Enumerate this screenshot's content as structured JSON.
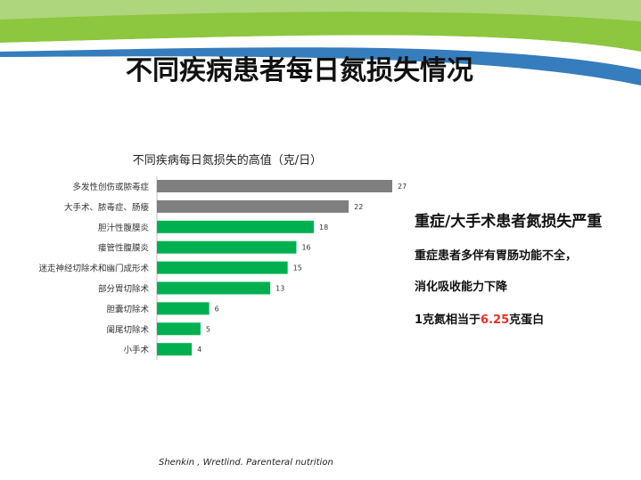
{
  "slide": {
    "title": "不同疾病患者每日氮损失情况",
    "citation": "Shenkin , Wretlind. Parenteral nutrition"
  },
  "side_text": {
    "heading": "重症/大手术患者氮损失严重",
    "line1": "重症患者多伴有胃肠功能不全，",
    "line2": "消化吸收能力下降",
    "line3_prefix": "1克氮相当于",
    "line3_value": "6.25",
    "line3_suffix": "克蛋白"
  },
  "colors": {
    "gray_bar": "#7f7f7f",
    "green_bar": "#00b050",
    "highlight": "#e8302a",
    "deco_green": "#8dc63f",
    "deco_blue": "#1f6fb5"
  },
  "chart_data": {
    "type": "bar",
    "orientation": "horizontal",
    "title": "不同疾病每日氮损失的高值（克/日）",
    "categories": [
      "多发性创伤或脓毒症",
      "大手术、脓毒症、肠瘘",
      "胆汁性腹膜炎",
      "瘘管性腹膜炎",
      "迷走神经切除术和幽门成形术",
      "部分胃切除术",
      "胆囊切除术",
      "阑尾切除术",
      "小手术"
    ],
    "values": [
      27,
      22,
      18,
      16,
      15,
      13,
      6,
      5,
      4
    ],
    "bar_colors": [
      "gray",
      "gray",
      "green",
      "green",
      "green",
      "green",
      "green",
      "green",
      "green"
    ],
    "data_labels": [
      "27",
      "22",
      "18",
      "16",
      "15",
      "13",
      "6",
      "5",
      "4"
    ],
    "xlim": [
      0,
      27
    ],
    "grid": false,
    "legend": "none"
  }
}
